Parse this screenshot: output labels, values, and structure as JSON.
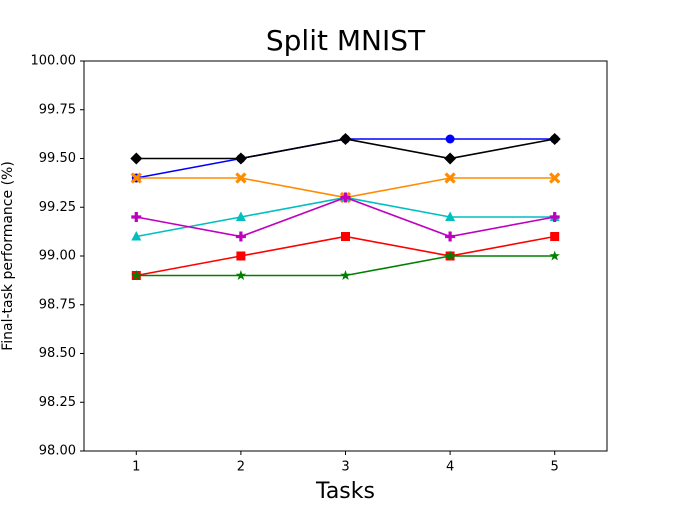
{
  "chart_data": {
    "type": "line",
    "title": "Split MNIST",
    "x_label": "Tasks",
    "y_label": "Final-task performance (%)",
    "x": [
      1,
      2,
      3,
      4,
      5
    ],
    "xlim": [
      0.5,
      5.5
    ],
    "xticks": [
      1,
      2,
      3,
      4,
      5
    ],
    "ylim": [
      98,
      100
    ],
    "yticks": [
      {
        "value": 98,
        "label": "98.00"
      },
      {
        "value": 98.25,
        "label": "98.25"
      },
      {
        "value": 98.5,
        "label": "98.50"
      },
      {
        "value": 98.75,
        "label": "98.75"
      },
      {
        "value": 99,
        "label": "99.00"
      },
      {
        "value": 99.25,
        "label": "99.25"
      },
      {
        "value": 99.5,
        "label": "99.50"
      },
      {
        "value": 99.75,
        "label": "99.75"
      },
      {
        "value": 100,
        "label": "100.00"
      }
    ],
    "grid": false,
    "series": [
      {
        "color": "#0000ff",
        "marker": "circle",
        "values": [
          99.4,
          99.5,
          99.6,
          99.6,
          99.6
        ]
      },
      {
        "color": "#000000",
        "marker": "diamond",
        "values": [
          99.5,
          99.5,
          99.6,
          99.5,
          99.6
        ]
      },
      {
        "color": "#ff8c00",
        "marker": "x",
        "values": [
          99.4,
          99.4,
          99.3,
          99.4,
          99.4
        ]
      },
      {
        "color": "#00bfbf",
        "marker": "triangle",
        "values": [
          99.1,
          99.2,
          99.3,
          99.2,
          99.2
        ]
      },
      {
        "color": "#bf00bf",
        "marker": "plus",
        "values": [
          99.2,
          99.1,
          99.3,
          99.1,
          99.2
        ]
      },
      {
        "color": "#ff0000",
        "marker": "square",
        "values": [
          98.9,
          99.0,
          99.1,
          99.0,
          99.1
        ]
      },
      {
        "color": "#008000",
        "marker": "star",
        "values": [
          98.9,
          98.9,
          98.9,
          99.0,
          99.0
        ]
      }
    ]
  }
}
